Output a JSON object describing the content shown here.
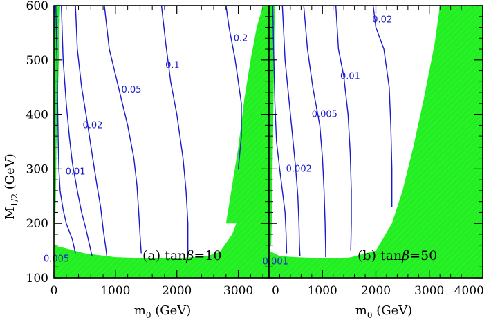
{
  "chart_data": [
    {
      "type": "contour",
      "panel_label": "(a)",
      "panel_label_rest": "tan",
      "panel_label_beta": "β",
      "panel_label_value": "=10",
      "xlabel": "m",
      "xlabel_sub": "0",
      "xlabel_unit": "(GeV)",
      "ylabel": "M",
      "ylabel_sub": "1/2",
      "ylabel_unit": "(GeV)",
      "xlim": [
        0,
        3500
      ],
      "ylim": [
        100,
        600
      ],
      "xticks": [
        0,
        1000,
        2000,
        3000
      ],
      "xticklabels": [
        "0",
        "1000",
        "2000",
        "3000"
      ],
      "yticks": [
        100,
        200,
        300,
        400,
        500,
        600
      ],
      "yticklabels": [
        "100",
        "200",
        "300",
        "400",
        "500",
        "600"
      ],
      "excluded_regions": [
        [
          [
            0,
            100
          ],
          [
            0,
            600
          ],
          [
            100,
            600
          ],
          [
            90,
            560
          ],
          [
            80,
            500
          ],
          [
            60,
            420
          ],
          [
            40,
            340
          ],
          [
            30,
            250
          ],
          [
            20,
            200
          ],
          [
            0,
            160
          ],
          [
            0,
            100
          ]
        ],
        [
          [
            0,
            100
          ],
          [
            0,
            160
          ],
          [
            500,
            145
          ],
          [
            1000,
            138
          ],
          [
            1500,
            136
          ],
          [
            2000,
            136
          ],
          [
            2500,
            140
          ],
          [
            2700,
            148
          ],
          [
            2900,
            180
          ],
          [
            3100,
            240
          ],
          [
            3300,
            320
          ],
          [
            3500,
            420
          ],
          [
            3500,
            100
          ]
        ],
        [
          [
            3500,
            100
          ],
          [
            3500,
            600
          ],
          [
            3400,
            600
          ],
          [
            3300,
            560
          ],
          [
            3200,
            500
          ],
          [
            3100,
            430
          ],
          [
            3000,
            340
          ],
          [
            2900,
            270
          ],
          [
            2800,
            200
          ],
          [
            3000,
            200
          ],
          [
            3500,
            100
          ]
        ]
      ],
      "contours": [
        {
          "label": "0.005",
          "label_at": [
            40,
            135
          ],
          "points": [
            [
              30,
              600
            ],
            [
              50,
              500
            ],
            [
              60,
              420
            ],
            [
              70,
              350
            ],
            [
              80,
              300
            ],
            [
              100,
              260
            ],
            [
              150,
              225
            ],
            [
              200,
              200
            ],
            [
              300,
              170
            ],
            [
              350,
              145
            ]
          ]
        },
        {
          "label": "0.01",
          "label_at": [
            350,
            295
          ],
          "points": [
            [
              120,
              600
            ],
            [
              150,
              500
            ],
            [
              200,
              420
            ],
            [
              250,
              360
            ],
            [
              300,
              310
            ],
            [
              380,
              260
            ],
            [
              450,
              220
            ],
            [
              520,
              190
            ],
            [
              580,
              160
            ],
            [
              620,
              140
            ]
          ]
        },
        {
          "label": "0.02",
          "label_at": [
            630,
            380
          ],
          "points": [
            [
              350,
              600
            ],
            [
              380,
              520
            ],
            [
              450,
              450
            ],
            [
              550,
              380
            ],
            [
              630,
              320
            ],
            [
              700,
              270
            ],
            [
              760,
              230
            ],
            [
              800,
              190
            ],
            [
              850,
              150
            ],
            [
              860,
              140
            ]
          ]
        },
        {
          "label": "0.05",
          "label_at": [
            1260,
            445
          ],
          "points": [
            [
              820,
              600
            ],
            [
              900,
              520
            ],
            [
              1050,
              450
            ],
            [
              1200,
              380
            ],
            [
              1300,
              320
            ],
            [
              1350,
              270
            ],
            [
              1380,
              220
            ],
            [
              1400,
              180
            ],
            [
              1420,
              145
            ]
          ]
        },
        {
          "label": "0.1",
          "label_at": [
            1930,
            490
          ],
          "points": [
            [
              1750,
              600
            ],
            [
              1820,
              530
            ],
            [
              1900,
              460
            ],
            [
              2000,
              400
            ],
            [
              2100,
              320
            ],
            [
              2150,
              260
            ],
            [
              2180,
              200
            ],
            [
              2180,
              160
            ],
            [
              2180,
              138
            ]
          ]
        },
        {
          "label": "0.2",
          "label_at": [
            3040,
            540
          ],
          "points": [
            [
              2800,
              600
            ],
            [
              2850,
              560
            ],
            [
              2950,
              500
            ],
            [
              3050,
              420
            ],
            [
              3050,
              360
            ],
            [
              3000,
              300
            ]
          ]
        }
      ]
    },
    {
      "type": "contour",
      "panel_label": "(b)",
      "panel_label_rest": "tan",
      "panel_label_beta": "β",
      "panel_label_value": "=50",
      "xlabel": "m",
      "xlabel_sub": "0",
      "xlabel_unit": "(GeV)",
      "xlim": [
        0,
        4000
      ],
      "ylim": [
        100,
        600
      ],
      "xticks": [
        0,
        1000,
        2000,
        3000,
        4000
      ],
      "xticklabels": [
        "0",
        "1000",
        "2000",
        "3000",
        "4000"
      ],
      "excluded_regions": [
        [
          [
            0,
            100
          ],
          [
            0,
            600
          ],
          [
            110,
            600
          ],
          [
            100,
            550
          ],
          [
            90,
            480
          ],
          [
            80,
            400
          ],
          [
            70,
            330
          ],
          [
            60,
            260
          ],
          [
            50,
            200
          ],
          [
            40,
            160
          ],
          [
            0,
            150
          ],
          [
            0,
            100
          ]
        ],
        [
          [
            0,
            100
          ],
          [
            0,
            150
          ],
          [
            200,
            140
          ],
          [
            500,
            138
          ],
          [
            1000,
            136
          ],
          [
            1500,
            137
          ],
          [
            2000,
            150
          ],
          [
            2300,
            200
          ],
          [
            2500,
            260
          ],
          [
            2700,
            340
          ],
          [
            2900,
            430
          ],
          [
            3100,
            530
          ],
          [
            3200,
            600
          ],
          [
            4000,
            600
          ],
          [
            4000,
            100
          ]
        ]
      ],
      "contours": [
        {
          "label": "0.001",
          "label_at": [
            120,
            130
          ],
          "points": [
            [
              70,
              600
            ],
            [
              90,
              500
            ],
            [
              110,
              420
            ],
            [
              140,
              350
            ],
            [
              200,
              300
            ],
            [
              250,
              260
            ],
            [
              300,
              220
            ],
            [
              320,
              180
            ],
            [
              330,
              145
            ]
          ]
        },
        {
          "label": "0.002",
          "label_at": [
            560,
            300
          ],
          "points": [
            [
              250,
              600
            ],
            [
              300,
              500
            ],
            [
              380,
              420
            ],
            [
              450,
              350
            ],
            [
              500,
              300
            ],
            [
              540,
              250
            ],
            [
              560,
              200
            ],
            [
              570,
              160
            ],
            [
              580,
              140
            ]
          ]
        },
        {
          "label": "0.005",
          "label_at": [
            1040,
            400
          ],
          "points": [
            [
              650,
              600
            ],
            [
              720,
              520
            ],
            [
              820,
              450
            ],
            [
              950,
              380
            ],
            [
              1000,
              320
            ],
            [
              1030,
              260
            ],
            [
              1050,
              200
            ],
            [
              1060,
              150
            ],
            [
              1060,
              138
            ]
          ]
        },
        {
          "label": "0.01",
          "label_at": [
            1520,
            470
          ],
          "points": [
            [
              1250,
              600
            ],
            [
              1300,
              520
            ],
            [
              1400,
              470
            ],
            [
              1480,
              400
            ],
            [
              1520,
              330
            ],
            [
              1540,
              260
            ],
            [
              1540,
              200
            ],
            [
              1530,
              150
            ]
          ]
        },
        {
          "label": "0.02",
          "label_at": [
            2120,
            574
          ],
          "points": [
            [
              1950,
              600
            ],
            [
              2000,
              560
            ],
            [
              2150,
              520
            ],
            [
              2250,
              450
            ],
            [
              2280,
              380
            ],
            [
              2300,
              300
            ],
            [
              2300,
              230
            ]
          ]
        }
      ]
    }
  ]
}
